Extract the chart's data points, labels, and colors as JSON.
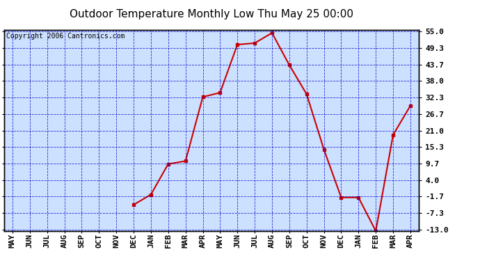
{
  "title": "Outdoor Temperature Monthly Low Thu May 25 00:00",
  "copyright": "Copyright 2006 Cantronics.com",
  "x_labels": [
    "MAY",
    "JUN",
    "JUL",
    "AUG",
    "SEP",
    "OCT",
    "NOV",
    "DEC",
    "JAN",
    "FEB",
    "MAR",
    "APR",
    "MAY",
    "JUN",
    "JUL",
    "AUG",
    "SEP",
    "OCT",
    "NOV",
    "DEC",
    "JAN",
    "FEB",
    "MAR",
    "APR"
  ],
  "y_ticks": [
    55.0,
    49.3,
    43.7,
    38.0,
    32.3,
    26.7,
    21.0,
    15.3,
    9.7,
    4.0,
    -1.7,
    -7.3,
    -13.0
  ],
  "y_min": -13.0,
  "y_max": 55.0,
  "x_indices": [
    7,
    8,
    9,
    10,
    11,
    12,
    13,
    14,
    15,
    16,
    17,
    18,
    19,
    20,
    21,
    22,
    23
  ],
  "y_values": [
    -4.5,
    -1.0,
    9.5,
    10.5,
    32.5,
    34.0,
    50.5,
    51.0,
    54.5,
    43.5,
    33.5,
    14.5,
    -2.0,
    -2.0,
    -13.5,
    19.5,
    29.5
  ],
  "line_color": "#cc0000",
  "marker": "s",
  "marker_size": 3,
  "plot_bg": "#cce0ff",
  "grid_color": "#0000cc",
  "title_fontsize": 11,
  "copyright_fontsize": 7,
  "tick_fontsize": 8,
  "linewidth": 1.5
}
